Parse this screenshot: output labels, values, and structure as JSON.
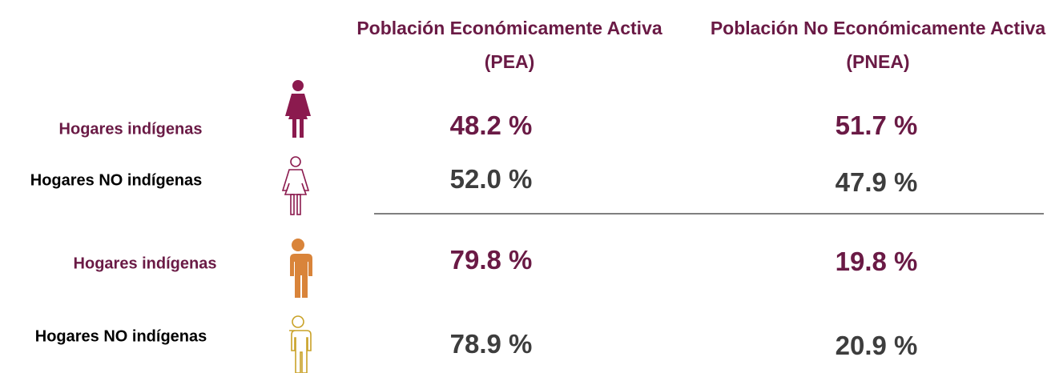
{
  "header": {
    "columns": [
      "Población Económicamente Activa (PEA)",
      "Población No Económicamente Activa (PNEA)"
    ]
  },
  "table": {
    "rows": [
      {
        "label": "Hogares indígenas",
        "values": [
          "48.2 %",
          "51.7 %"
        ]
      },
      {
        "label": "Hogares NO indígenas",
        "values": [
          "52.0 %",
          "47.9 %"
        ]
      },
      {
        "label": "Hogares indígenas",
        "values": [
          "79.8 %",
          "19.8 %"
        ]
      },
      {
        "label": "Hogares NO indígenas",
        "values": [
          "78.9 %",
          "20.9 %"
        ]
      }
    ]
  }
}
